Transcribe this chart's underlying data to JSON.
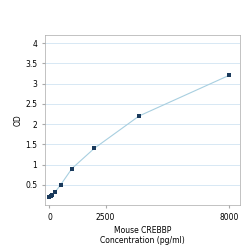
{
  "title_line1": "Mouse CREBBP",
  "title_line2": "Concentration (pg/ml)",
  "ylabel": "OD",
  "x_values": [
    0,
    62.5,
    125,
    250,
    500,
    1000,
    2000,
    4000,
    8000
  ],
  "y_values": [
    0.2,
    0.22,
    0.25,
    0.32,
    0.5,
    0.9,
    1.4,
    2.2,
    3.2
  ],
  "xlim": [
    -200,
    8500
  ],
  "ylim": [
    0.0,
    4.2
  ],
  "yticks": [
    0.5,
    1.0,
    1.5,
    2.0,
    2.5,
    3.0,
    3.5,
    4.0
  ],
  "ytick_labels": [
    "0.5",
    "1",
    "1.5",
    "2",
    "2.5",
    "3",
    "3.5",
    "4"
  ],
  "xticks": [
    0,
    2500,
    8000
  ],
  "xtick_labels": [
    "0",
    "2500",
    "8000"
  ],
  "line_color": "#a8cfe0",
  "marker_color": "#1a3a5c",
  "bg_color": "#ffffff",
  "plot_bg": "#ffffff",
  "outer_bg": "#ffffff",
  "grid_color": "#c8dff0",
  "title_fontsize": 5.5,
  "label_fontsize": 5.5,
  "tick_fontsize": 5.5
}
